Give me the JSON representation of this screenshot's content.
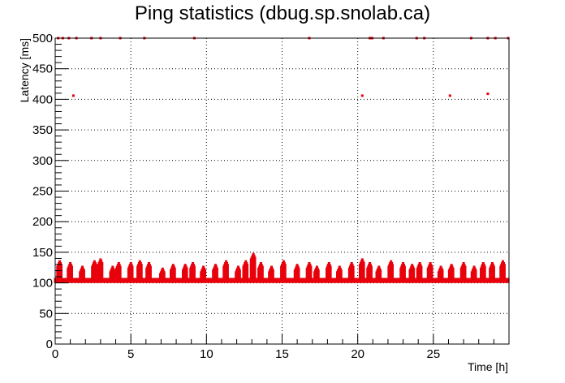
{
  "chart_data": {
    "type": "scatter",
    "title": "Ping statistics (dbug.sp.snolab.ca)",
    "xlabel": "Time [h]",
    "ylabel": "Latency [ms]",
    "xlim": [
      0,
      30
    ],
    "ylim": [
      0,
      500
    ],
    "x_ticks": [
      0,
      5,
      10,
      15,
      20,
      25
    ],
    "y_ticks": [
      0,
      50,
      100,
      150,
      200,
      250,
      300,
      350,
      400,
      450,
      500
    ],
    "grid": true,
    "marker_color": "#e8000b",
    "baseline_latency": 104,
    "saturated_points": {
      "y": 500,
      "x": [
        0.2,
        0.5,
        0.9,
        1.4,
        2.4,
        3.0,
        4.3,
        5.9,
        9.2,
        16.8,
        20.8,
        20.95,
        21.7,
        23.9,
        24.4,
        27.5,
        28.6,
        29.1,
        29.95
      ]
    },
    "outlier_points": [
      {
        "x": 1.2,
        "y": 406
      },
      {
        "x": 20.3,
        "y": 406
      },
      {
        "x": 26.1,
        "y": 406
      },
      {
        "x": 28.6,
        "y": 409
      }
    ],
    "spike_clusters": [
      {
        "x": 0.3,
        "peak": 135
      },
      {
        "x": 1.0,
        "peak": 132
      },
      {
        "x": 1.8,
        "peak": 128
      },
      {
        "x": 2.6,
        "peak": 135
      },
      {
        "x": 3.0,
        "peak": 138
      },
      {
        "x": 3.8,
        "peak": 126
      },
      {
        "x": 4.2,
        "peak": 134
      },
      {
        "x": 5.0,
        "peak": 132
      },
      {
        "x": 5.6,
        "peak": 136
      },
      {
        "x": 6.2,
        "peak": 132
      },
      {
        "x": 7.1,
        "peak": 125
      },
      {
        "x": 7.8,
        "peak": 131
      },
      {
        "x": 8.6,
        "peak": 130
      },
      {
        "x": 9.1,
        "peak": 134
      },
      {
        "x": 9.8,
        "peak": 128
      },
      {
        "x": 10.6,
        "peak": 131
      },
      {
        "x": 11.3,
        "peak": 135
      },
      {
        "x": 12.1,
        "peak": 128
      },
      {
        "x": 12.6,
        "peak": 137
      },
      {
        "x": 13.1,
        "peak": 148
      },
      {
        "x": 13.6,
        "peak": 134
      },
      {
        "x": 14.3,
        "peak": 128
      },
      {
        "x": 15.1,
        "peak": 135
      },
      {
        "x": 16.0,
        "peak": 130
      },
      {
        "x": 16.8,
        "peak": 132
      },
      {
        "x": 17.3,
        "peak": 126
      },
      {
        "x": 18.1,
        "peak": 134
      },
      {
        "x": 18.8,
        "peak": 128
      },
      {
        "x": 19.6,
        "peak": 132
      },
      {
        "x": 20.3,
        "peak": 138
      },
      {
        "x": 20.8,
        "peak": 134
      },
      {
        "x": 21.4,
        "peak": 128
      },
      {
        "x": 22.2,
        "peak": 135
      },
      {
        "x": 23.0,
        "peak": 132
      },
      {
        "x": 23.6,
        "peak": 130
      },
      {
        "x": 24.1,
        "peak": 133
      },
      {
        "x": 24.8,
        "peak": 134
      },
      {
        "x": 25.5,
        "peak": 126
      },
      {
        "x": 26.2,
        "peak": 130
      },
      {
        "x": 27.0,
        "peak": 133
      },
      {
        "x": 27.7,
        "peak": 127
      },
      {
        "x": 28.3,
        "peak": 134
      },
      {
        "x": 28.9,
        "peak": 132
      },
      {
        "x": 29.6,
        "peak": 136
      }
    ]
  }
}
